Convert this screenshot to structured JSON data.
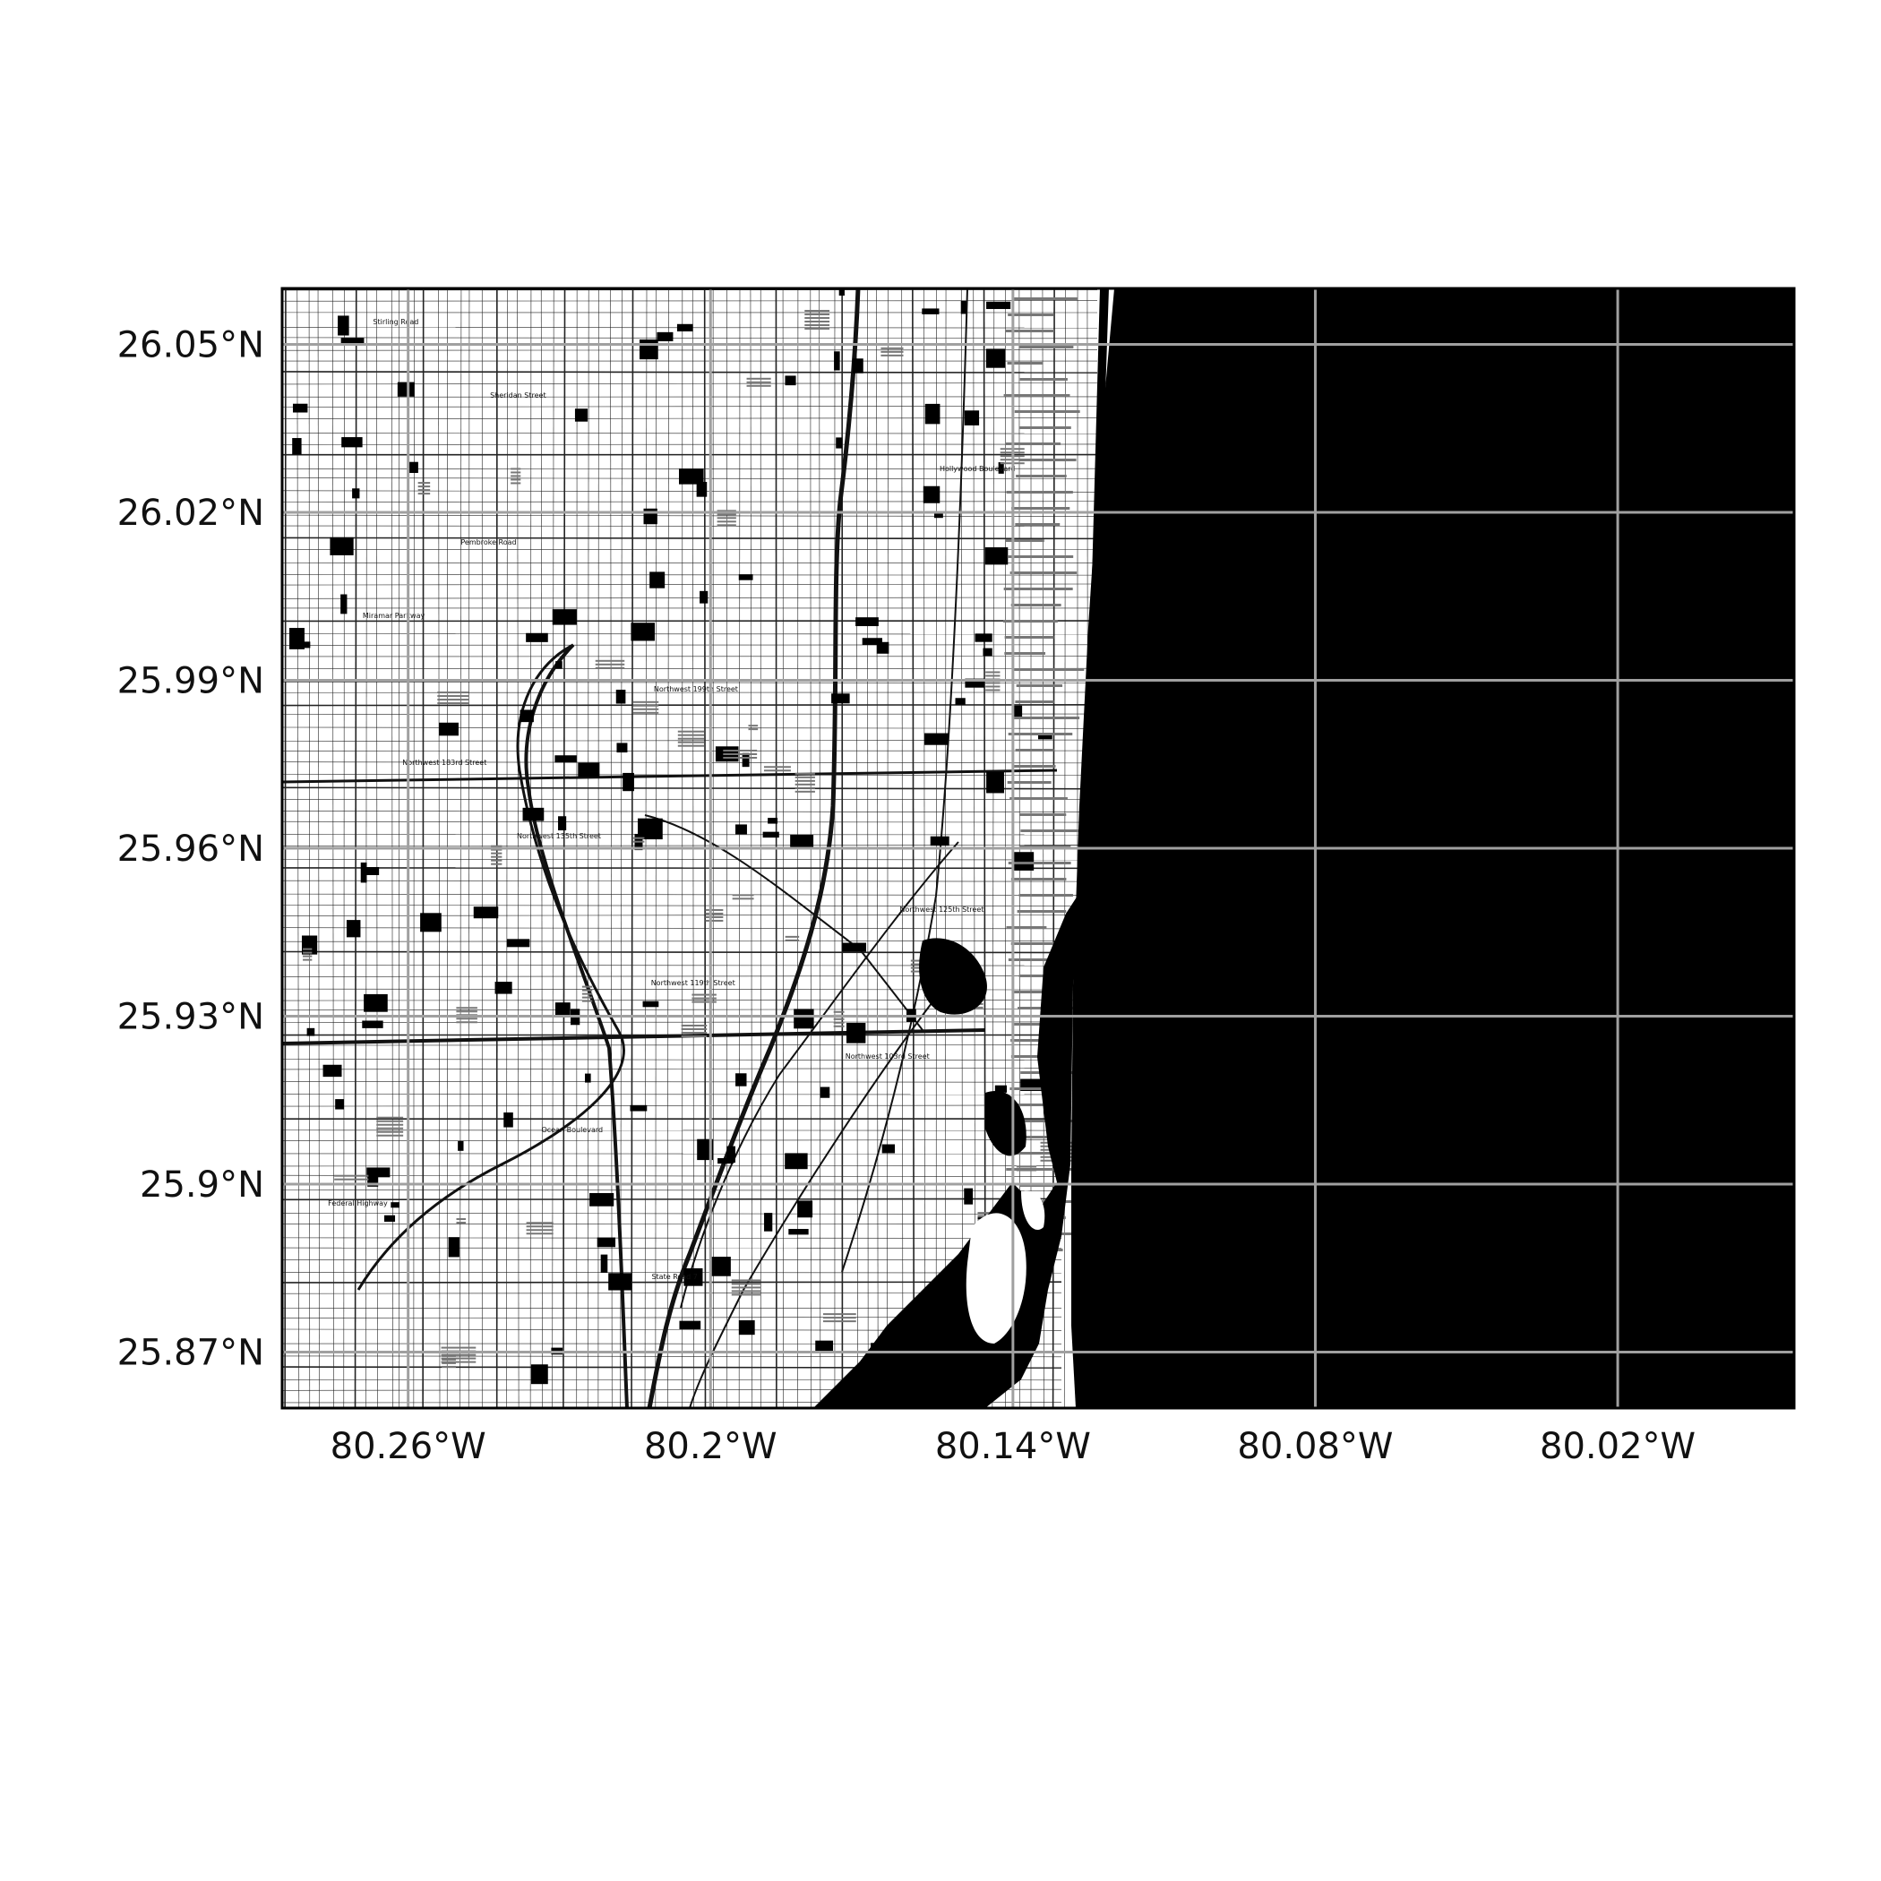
{
  "map": {
    "extent": {
      "lon_min": -80.285,
      "lon_max": -79.985,
      "lat_min": 25.86,
      "lat_max": 26.06
    },
    "colors": {
      "land": "#ffffff",
      "ocean": "#000000",
      "roads": "#111111",
      "graticule": "#a0a0a0",
      "frame": "#000000"
    },
    "graticule": {
      "lon_values": [
        -80.26,
        -80.2,
        -80.14,
        -80.08,
        -80.02
      ],
      "lat_values": [
        26.05,
        26.02,
        25.99,
        25.96,
        25.93,
        25.9,
        25.87
      ]
    },
    "x_tick_labels": [
      "80.26°W",
      "80.2°W",
      "80.14°W",
      "80.08°W",
      "80.02°W"
    ],
    "y_tick_labels": [
      "26.05°N",
      "26.02°N",
      "25.99°N",
      "25.96°N",
      "25.93°N",
      "25.9°N",
      "25.87°N"
    ],
    "street_labels": [
      "Stirling Road",
      "Sheridan Street",
      "Hollywood Boulevard",
      "Pembroke Road",
      "Miramar Parkway",
      "Northwest 199th Street",
      "Northwest 183rd Street",
      "Northwest 135th Street",
      "Northwest 125th Street",
      "Northwest 119th Street",
      "Northwest 103rd Street",
      "Ocean Boulevard",
      "Federal Highway",
      "State Road 7"
    ]
  }
}
